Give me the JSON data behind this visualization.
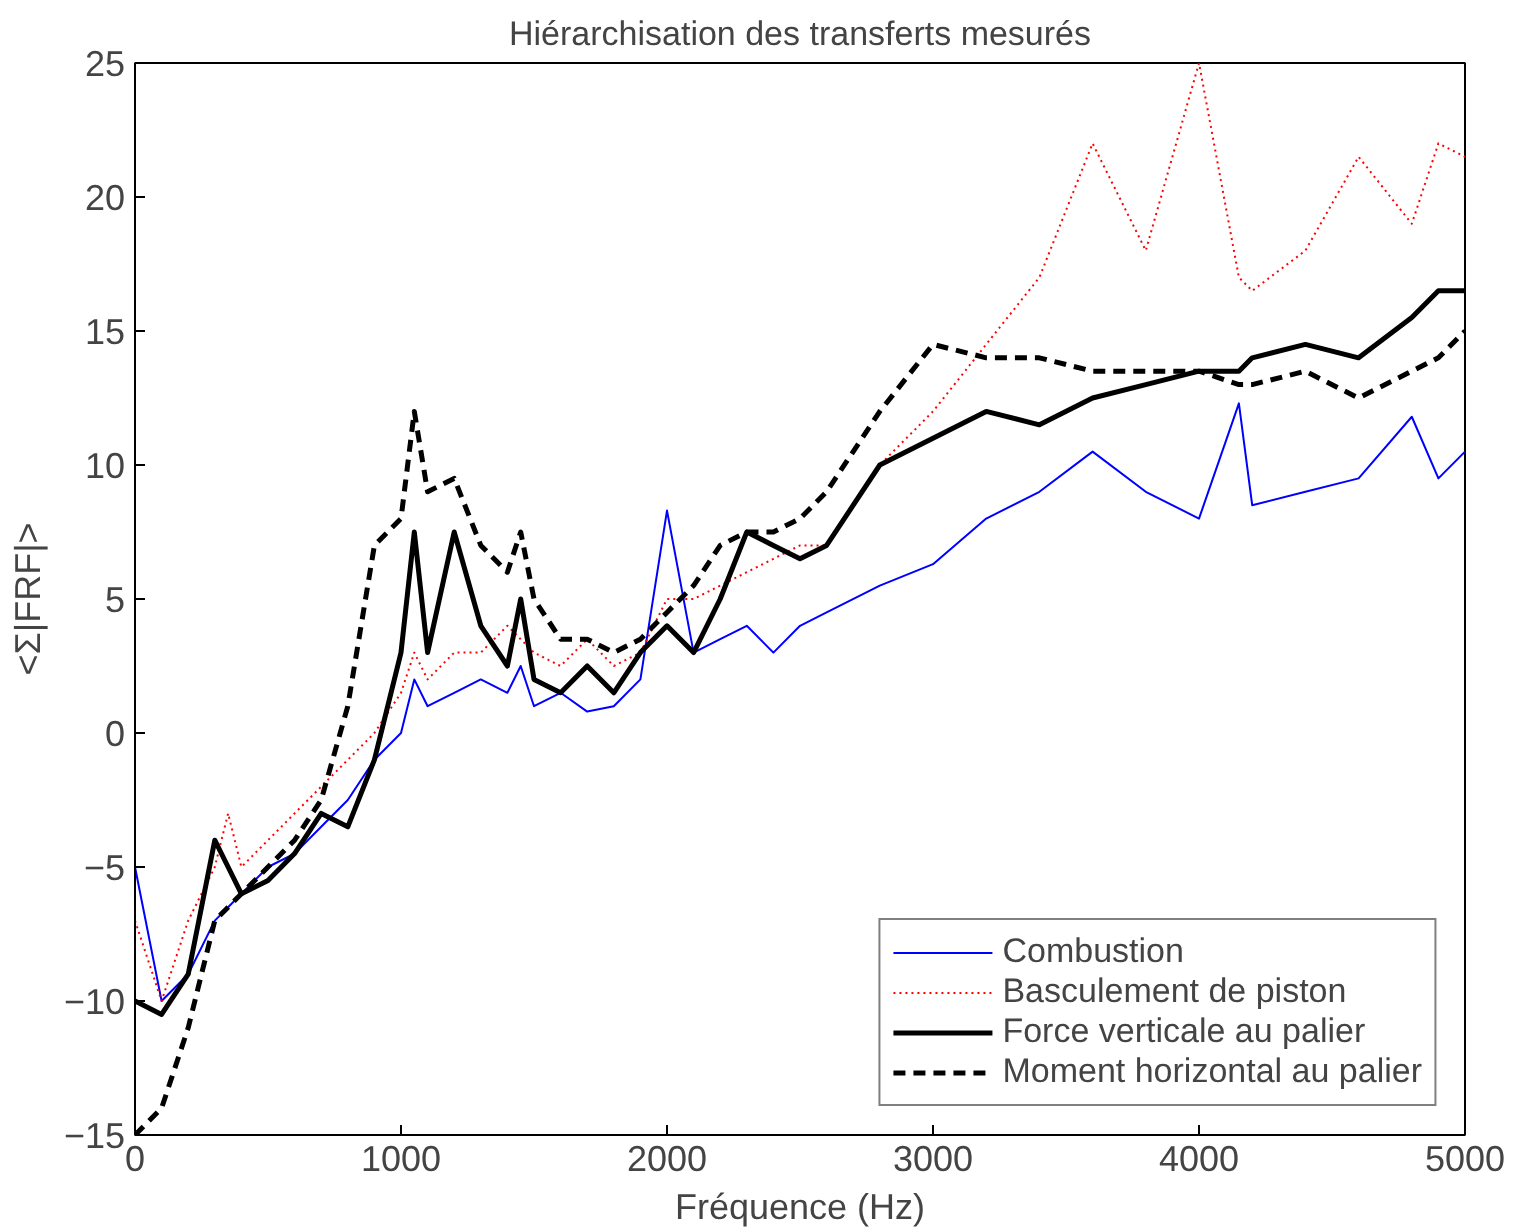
{
  "chart_data": {
    "type": "line",
    "title": "Hiérarchisation des transferts mesurés",
    "xlabel": "Fréquence (Hz)",
    "ylabel": "<Σ|FRF|>",
    "x": [
      0,
      100,
      200,
      300,
      350,
      400,
      500,
      600,
      700,
      800,
      900,
      1000,
      1050,
      1100,
      1200,
      1300,
      1400,
      1450,
      1500,
      1600,
      1700,
      1800,
      1900,
      2000,
      2100,
      2200,
      2300,
      2400,
      2500,
      2600,
      2800,
      3000,
      3200,
      3400,
      3600,
      3800,
      4000,
      4150,
      4200,
      4400,
      4600,
      4800,
      4900,
      5000
    ],
    "xlim": [
      0,
      5000
    ],
    "ylim": [
      -15,
      25
    ],
    "xticks": [
      0,
      1000,
      2000,
      3000,
      4000,
      5000
    ],
    "yticks": [
      -15,
      -10,
      -5,
      0,
      5,
      10,
      15,
      20,
      25
    ],
    "grid": false,
    "legend": "bottom right",
    "series": [
      {
        "name": "Combustion",
        "color": "#0000ff",
        "line_style": "solid",
        "values": [
          -5,
          -10,
          -9,
          -7,
          -6.5,
          -6,
          -5,
          -4.5,
          -3.5,
          -2.5,
          -1,
          0,
          2,
          1,
          1.5,
          2,
          1.5,
          2.5,
          1,
          1.5,
          0.8,
          1,
          2,
          8.3,
          3,
          3.5,
          4,
          3,
          4,
          4.5,
          5.5,
          6.3,
          8,
          9,
          10.5,
          9,
          8,
          12.3,
          8.5,
          9,
          9.5,
          11.8,
          9.5,
          10.5
        ]
      },
      {
        "name": "Basculement de piston",
        "color": "#ff0000",
        "line_style": "dotted",
        "values": [
          -7,
          -10,
          -7,
          -5,
          -3,
          -5,
          -4,
          -3,
          -2,
          -1,
          0,
          1.5,
          3,
          2,
          3,
          3,
          4,
          3.5,
          3,
          2.5,
          3.5,
          2.5,
          3,
          5,
          5,
          5.5,
          6,
          6.5,
          7,
          7,
          10,
          12,
          14.5,
          17,
          22,
          18,
          25,
          17,
          16.5,
          18,
          21.5,
          19,
          22,
          21.5
        ]
      },
      {
        "name": "Force verticale au palier",
        "color": "#000000",
        "line_style": "solid",
        "values": [
          -10,
          -10.5,
          -9,
          -4,
          -5,
          -6,
          -5.5,
          -4.5,
          -3,
          -3.5,
          -1,
          3,
          7.5,
          3,
          7.5,
          4,
          2.5,
          5,
          2,
          1.5,
          2.5,
          1.5,
          3,
          4,
          3,
          5,
          7.5,
          7,
          6.5,
          7,
          10,
          11,
          12,
          11.5,
          12.5,
          13,
          13.5,
          13.5,
          14,
          14.5,
          14,
          15.5,
          16.5,
          16.5
        ]
      },
      {
        "name": "Moment horizontal au palier",
        "color": "#000000",
        "line_style": "dashed",
        "values": [
          -15,
          -14,
          -11,
          -7,
          -6.5,
          -6,
          -5,
          -4,
          -2.5,
          1,
          7,
          8,
          12,
          9,
          9.5,
          7,
          6,
          7.5,
          5,
          3.5,
          3.5,
          3,
          3.5,
          4.5,
          5.5,
          7,
          7.5,
          7.5,
          8,
          9,
          12,
          14.5,
          14,
          14,
          13.5,
          13.5,
          13.5,
          13,
          13,
          13.5,
          12.5,
          13.5,
          14,
          15
        ]
      }
    ]
  }
}
